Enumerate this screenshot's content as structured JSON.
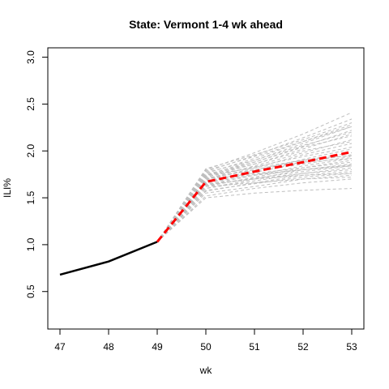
{
  "chart_data": {
    "type": "line",
    "title": "State: Vermont 1-4 wk ahead",
    "xlabel": "wk",
    "ylabel": "ILI%",
    "xlim": [
      47,
      53
    ],
    "ylim": [
      0.1,
      3.1
    ],
    "x_ticks": [
      "47",
      "48",
      "49",
      "50",
      "51",
      "52",
      "53"
    ],
    "y_ticks": [
      "0.5",
      "1.0",
      "1.5",
      "2.0",
      "2.5",
      "3.0"
    ],
    "grid": false,
    "legend": "none",
    "colors": {
      "observed": "#000000",
      "forecast_mean": "#ff0000",
      "forecast_samples": "#bebebe"
    },
    "observed": {
      "x": [
        47,
        48,
        49
      ],
      "y": [
        0.68,
        0.82,
        1.03
      ]
    },
    "forecast_mean": {
      "x": [
        49,
        50,
        51,
        52,
        53
      ],
      "y": [
        1.03,
        1.67,
        1.78,
        1.88,
        1.99
      ]
    },
    "forecast_samples": {
      "x": [
        49,
        50,
        51,
        52,
        53
      ],
      "series": [
        [
          1.03,
          1.5,
          1.55,
          1.58,
          1.6
        ],
        [
          1.03,
          1.52,
          1.6,
          1.66,
          1.7
        ],
        [
          1.03,
          1.55,
          1.62,
          1.7,
          1.74
        ],
        [
          1.03,
          1.57,
          1.66,
          1.74,
          1.78
        ],
        [
          1.03,
          1.58,
          1.65,
          1.72,
          1.76
        ],
        [
          1.03,
          1.6,
          1.7,
          1.8,
          1.85
        ],
        [
          1.03,
          1.6,
          1.68,
          1.76,
          1.82
        ],
        [
          1.03,
          1.62,
          1.72,
          1.82,
          1.9
        ],
        [
          1.03,
          1.63,
          1.71,
          1.78,
          1.84
        ],
        [
          1.03,
          1.64,
          1.74,
          1.84,
          1.92
        ],
        [
          1.03,
          1.65,
          1.7,
          1.76,
          1.8
        ],
        [
          1.03,
          1.66,
          1.77,
          1.88,
          1.96
        ],
        [
          1.03,
          1.66,
          1.74,
          1.8,
          1.86
        ],
        [
          1.03,
          1.67,
          1.79,
          1.91,
          2.02
        ],
        [
          1.03,
          1.68,
          1.78,
          1.86,
          1.94
        ],
        [
          1.03,
          1.69,
          1.82,
          1.96,
          2.08
        ],
        [
          1.03,
          1.7,
          1.8,
          1.9,
          1.98
        ],
        [
          1.03,
          1.7,
          1.84,
          1.98,
          2.12
        ],
        [
          1.03,
          1.71,
          1.8,
          1.88,
          1.92
        ],
        [
          1.03,
          1.72,
          1.86,
          2.02,
          2.18
        ],
        [
          1.03,
          1.72,
          1.83,
          1.94,
          2.04
        ],
        [
          1.03,
          1.73,
          1.88,
          2.05,
          2.22
        ],
        [
          1.03,
          1.74,
          1.86,
          2.0,
          2.1
        ],
        [
          1.03,
          1.74,
          1.9,
          2.08,
          2.26
        ],
        [
          1.03,
          1.75,
          1.88,
          2.04,
          2.16
        ],
        [
          1.03,
          1.76,
          1.92,
          2.1,
          2.28
        ],
        [
          1.03,
          1.77,
          1.9,
          2.06,
          2.2
        ],
        [
          1.03,
          1.78,
          1.95,
          2.14,
          2.34
        ],
        [
          1.03,
          1.79,
          1.94,
          2.1,
          2.26
        ],
        [
          1.03,
          1.8,
          1.98,
          2.18,
          2.41
        ],
        [
          1.03,
          1.81,
          1.96,
          2.12,
          2.3
        ],
        [
          1.03,
          1.68,
          1.75,
          1.8,
          1.84
        ],
        [
          1.03,
          1.64,
          1.7,
          1.74,
          1.76
        ],
        [
          1.03,
          1.62,
          1.66,
          1.7,
          1.72
        ],
        [
          1.03,
          1.7,
          1.76,
          1.82,
          1.88
        ],
        [
          1.03,
          1.74,
          1.82,
          1.9,
          1.95
        ]
      ]
    }
  }
}
